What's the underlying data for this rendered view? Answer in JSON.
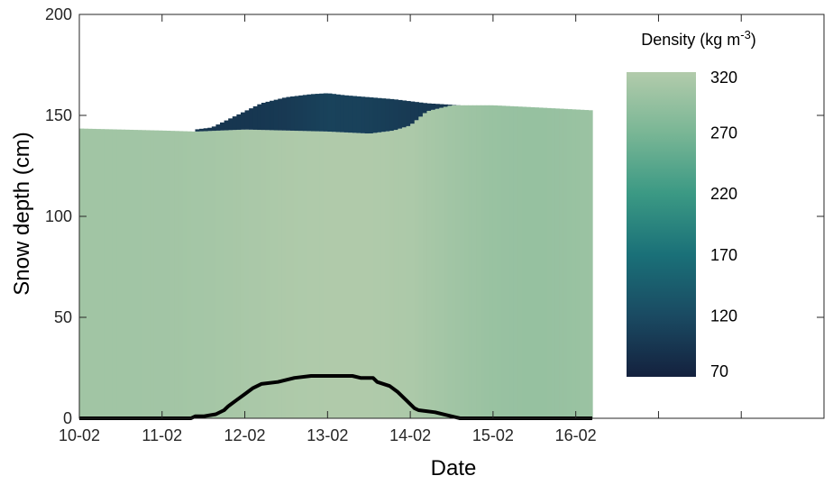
{
  "chart_data": {
    "type": "area",
    "xlabel": "Date",
    "ylabel": "Snow depth (cm)",
    "ylim": [
      0,
      200
    ],
    "yticks": [
      0,
      50,
      100,
      150,
      200
    ],
    "xlim": [
      0,
      9
    ],
    "xticks": [
      0,
      1,
      2,
      3,
      4,
      5,
      6,
      7,
      8,
      9
    ],
    "xtick_labels": [
      "10-02",
      "11-02",
      "12-02",
      "13-02",
      "14-02",
      "15-02",
      "16-02",
      "",
      "",
      ""
    ],
    "colorbar": {
      "title": "Density (kg m",
      "title_sup": "-3",
      "title_end": ")",
      "min": 70,
      "max": 320,
      "ticks": [
        320,
        270,
        220,
        170,
        120,
        70
      ],
      "colors": [
        "#14213e",
        "#1a4a62",
        "#1a7078",
        "#3b9984",
        "#79b695",
        "#b2cbab"
      ]
    },
    "total_depth": {
      "x": [
        0,
        1,
        1.4,
        1.41,
        2.0,
        2.01,
        3.0,
        3.5,
        3.51,
        3.8,
        4.0,
        4.2,
        4.5,
        5.0,
        5.5,
        6.2
      ],
      "y": [
        143.5,
        142.5,
        142,
        142,
        143,
        143,
        142,
        141,
        141,
        142.5,
        145,
        152,
        155,
        155,
        154,
        152.5
      ]
    },
    "new_snow_top": {
      "x": [
        1.4,
        1.6,
        1.7,
        1.8,
        1.9,
        2.0,
        2.2,
        2.5,
        2.8,
        3.0,
        3.2,
        3.5,
        3.8,
        4.0,
        4.2,
        4.6
      ],
      "y": [
        143,
        144,
        146,
        148,
        150,
        152,
        156,
        159,
        160.5,
        161,
        160,
        159,
        158,
        157,
        156,
        155
      ]
    },
    "layer_density": {
      "x": [
        0,
        0.5,
        1.0,
        1.5,
        2.0,
        2.5,
        3.0,
        3.5,
        4.0,
        4.5,
        5.0,
        5.5,
        6.0,
        6.2
      ],
      "old_snow": [
        305,
        305,
        306,
        308,
        312,
        316,
        318,
        318,
        315,
        305,
        298,
        295,
        298,
        300
      ],
      "new_snow": [
        null,
        null,
        null,
        95,
        95,
        100,
        110,
        108,
        100,
        95,
        null,
        null,
        null,
        null
      ]
    },
    "thick_line": {
      "x": [
        0,
        1.35,
        1.4,
        1.5,
        1.65,
        1.75,
        1.8,
        1.9,
        2.0,
        2.1,
        2.2,
        2.4,
        2.6,
        2.8,
        3.3,
        3.4,
        3.55,
        3.6,
        3.75,
        3.85,
        3.95,
        4.0,
        4.05,
        4.1,
        4.3,
        4.5,
        4.6,
        4.8,
        6.2
      ],
      "y": [
        0,
        0,
        1,
        1,
        2,
        4,
        6,
        9,
        12,
        15,
        17,
        18,
        20,
        21,
        21,
        20,
        20,
        18,
        16,
        13,
        9,
        7,
        5,
        4,
        3,
        1,
        0,
        0,
        0
      ]
    }
  }
}
